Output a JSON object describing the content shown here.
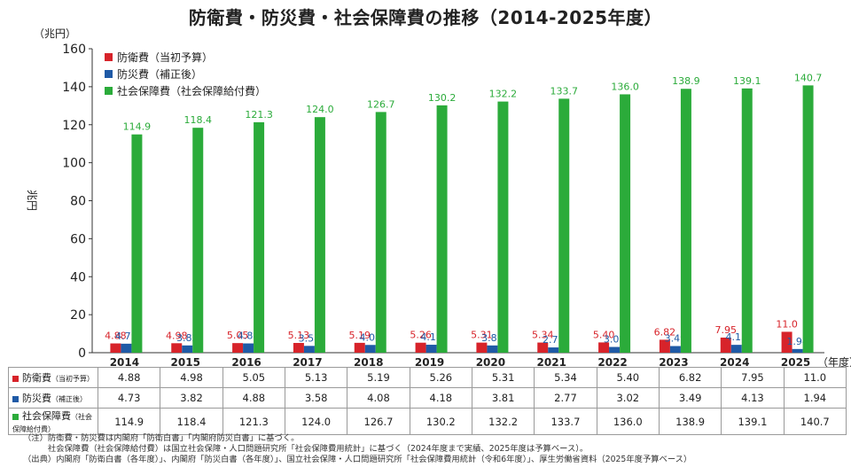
{
  "title": "防衛費・防災費・社会保障費の推移（2014-2025年度）",
  "colors": {
    "defense": "#d7232a",
    "disaster": "#1f5aa6",
    "social": "#2bab3a"
  },
  "chart_data": {
    "type": "bar",
    "title": "防衛費・防災費・社会保障費の推移（2014-2025年度）",
    "unit_label": "（兆円）",
    "ylabel": "兆円",
    "xunit": "（年度）",
    "ylim": [
      0,
      160
    ],
    "yticks": [
      0,
      20,
      40,
      60,
      80,
      100,
      120,
      140,
      160
    ],
    "grid": false,
    "legend_position": "top-left",
    "categories": [
      "2014",
      "2015",
      "2016",
      "2017",
      "2018",
      "2019",
      "2020",
      "2021",
      "2022",
      "2023",
      "2024",
      "2025"
    ],
    "series": [
      {
        "name": "防衛費（当初予算）",
        "color": "#d7232a",
        "values": [
          4.88,
          4.98,
          5.05,
          5.13,
          5.19,
          5.26,
          5.31,
          5.34,
          5.4,
          6.82,
          7.95,
          11.0
        ],
        "labels": [
          "4.88",
          "4.98",
          "5.05",
          "5.13",
          "5.19",
          "5.26",
          "5.31",
          "5.34",
          "5.40",
          "6.82",
          "7.95",
          "11.0"
        ]
      },
      {
        "name": "防災費（補正後）",
        "color": "#1f5aa6",
        "values": [
          4.73,
          3.82,
          4.88,
          3.58,
          4.08,
          4.18,
          3.81,
          2.77,
          3.02,
          3.49,
          4.13,
          1.94
        ],
        "labels": [
          "4.73",
          "3.82",
          "4.88",
          "3.58",
          "4.08",
          "4.18",
          "3.81",
          "2.77",
          "3.02",
          "3.49",
          "4.13",
          "1.94"
        ]
      },
      {
        "name": "社会保障費（社会保障給付費）",
        "color": "#2bab3a",
        "values": [
          114.9,
          118.4,
          121.3,
          124.0,
          126.7,
          130.2,
          132.2,
          133.7,
          136.0,
          138.9,
          139.1,
          140.7
        ],
        "labels": [
          "114.9",
          "118.4",
          "121.3",
          "124.0",
          "126.7",
          "130.2",
          "132.2",
          "133.7",
          "136.0",
          "138.9",
          "139.1",
          "140.7"
        ]
      }
    ]
  },
  "table": {
    "rows": [
      {
        "label": "防衛費",
        "sub": "（当初予算）",
        "color": "#d7232a",
        "cells": [
          "4.88",
          "4.98",
          "5.05",
          "5.13",
          "5.19",
          "5.26",
          "5.31",
          "5.34",
          "5.40",
          "6.82",
          "7.95",
          "11.0"
        ]
      },
      {
        "label": "防災費",
        "sub": "（補正後）",
        "color": "#1f5aa6",
        "cells": [
          "4.73",
          "3.82",
          "4.88",
          "3.58",
          "4.08",
          "4.18",
          "3.81",
          "2.77",
          "3.02",
          "3.49",
          "4.13",
          "1.94"
        ]
      },
      {
        "label": "社会保障費",
        "sub": "（社会保障給付費）",
        "color": "#2bab3a",
        "cells": [
          "114.9",
          "118.4",
          "121.3",
          "124.0",
          "126.7",
          "130.2",
          "132.2",
          "133.7",
          "136.0",
          "138.9",
          "139.1",
          "140.7"
        ]
      }
    ]
  },
  "notes": [
    "（注）防衛費・防災費は内閣府「防衛白書」「内閣府防災白書」に基づく。",
    "　　　社会保障費（社会保障給付費）は国立社会保障・人口問題研究所「社会保障費用統計」に基づく（2024年度まで実績、2025年度は予算ベース）。",
    "（出典）内閣府「防衛白書（各年度）」、内閣府「防災白書（各年度）」、国立社会保障・人口問題研究所「社会保障費用統計（令和6年度）」、厚生労働省資料（2025年度予算ベース）"
  ]
}
